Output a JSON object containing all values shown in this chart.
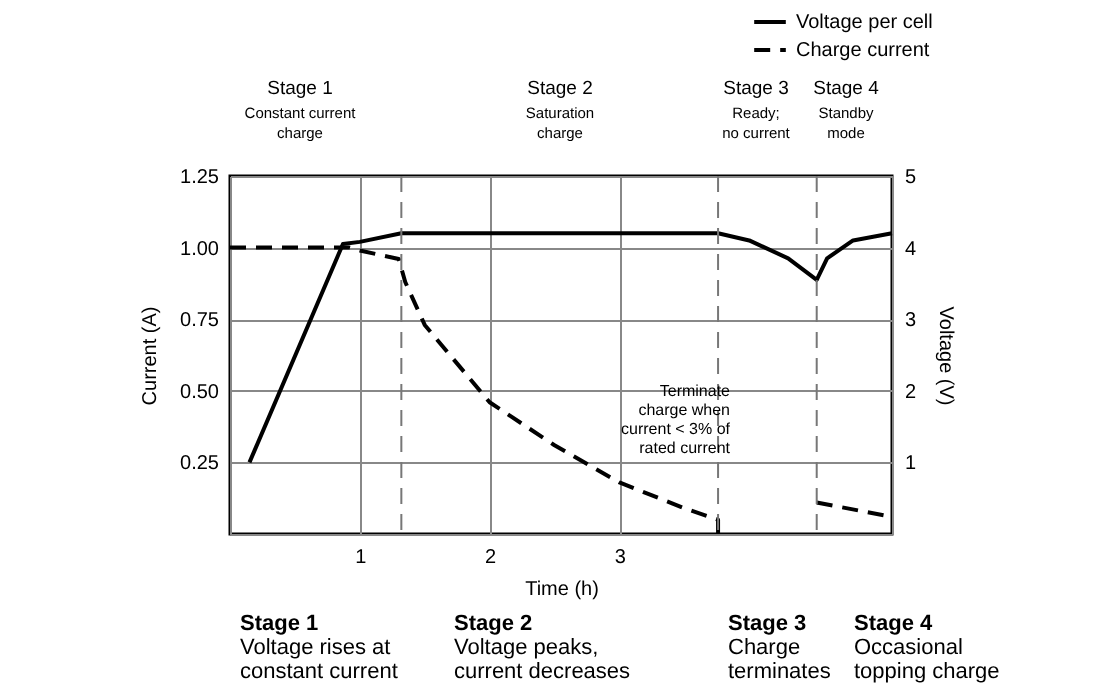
{
  "chart_data": {
    "type": "line",
    "xlabel": "Time (h)",
    "ylabel": "Current (A)",
    "y2label": "Voltage (V)",
    "xlim": [
      0,
      5.1
    ],
    "xticks": [
      1,
      2,
      3
    ],
    "ylim": [
      0,
      1.25
    ],
    "yticks": [
      0.25,
      {
        "value": 0.5,
        "label": "0.50"
      },
      0.75,
      {
        "value": 1,
        "label": "1.00"
      },
      1.25
    ],
    "y2lim": [
      0,
      5
    ],
    "y2ticks": [
      1,
      2,
      3,
      4,
      5
    ],
    "grid": true,
    "legend": "top right",
    "series": [
      {
        "name": "Voltage per cell",
        "color": "#000000",
        "axis": "y2",
        "line_style": "solid",
        "x": [
          0.15,
          0.87,
          1.0,
          1.32,
          3.76,
          4.0,
          4.3,
          4.52,
          4.6,
          4.8,
          5.1
        ],
        "values": [
          1.0,
          4.05,
          4.08,
          4.2,
          4.2,
          4.1,
          3.85,
          3.55,
          3.85,
          4.1,
          4.2
        ]
      },
      {
        "name": "Charge current",
        "color": "#000000",
        "line_style": "dashed",
        "x": [
          0,
          0.92,
          1.0,
          1.3,
          1.35,
          1.5,
          2.0,
          2.5,
          3.0,
          3.5,
          3.76,
          3.76,
          4.1,
          4.52,
          5.1
        ],
        "values": [
          1.0,
          1.0,
          0.99,
          0.96,
          0.88,
          0.73,
          0.46,
          0.31,
          0.18,
          0.09,
          0.05,
          0,
          null,
          0.11,
          0.06
        ]
      }
    ],
    "ref_lines": [
      {
        "axis": "x",
        "value": 1.32,
        "line_style": "dashed",
        "color": "#777777"
      },
      {
        "axis": "x",
        "value": 3.76,
        "line_style": "dashed",
        "color": "#777777"
      },
      {
        "axis": "x",
        "value": 4.52,
        "line_style": "dashed",
        "color": "#777777"
      }
    ],
    "annotations": [
      "Stage 1\nConstant current\ncharge",
      "Stage 2\nSaturation\ncharge",
      "Stage 3\nReady;\nno current",
      "Stage 4\nStandby\nmode",
      "Terminate\ncharge when\ncurrent < 3% of\nrated current",
      "Stage 1\nVoltage rises at\nconstant current",
      "Stage 2\nVoltage peaks,\ncurrent decreases",
      "Stage 3\nCharge\nterminates",
      "Stage 4\nOccasional\ntopping charge"
    ]
  }
}
